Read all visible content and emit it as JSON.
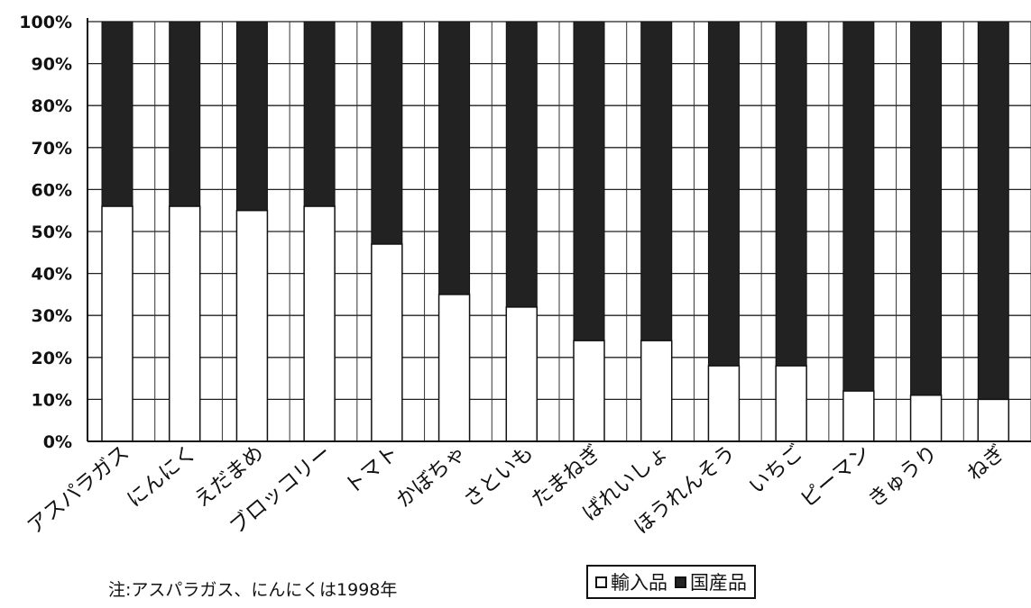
{
  "chart_data": {
    "type": "bar",
    "stacked": true,
    "percent_stacked": true,
    "categories": [
      "アスパラガス",
      "にんにく",
      "えだまめ",
      "ブロッコリー",
      "トマト",
      "かぼちゃ",
      "さといも",
      "たまねぎ",
      "ばれいしょ",
      "ほうれんそう",
      "いちご",
      "ピーマン",
      "きゅうり",
      "ねぎ"
    ],
    "series": [
      {
        "name": "輸入品",
        "values": [
          56,
          56,
          55,
          56,
          47,
          35,
          32,
          24,
          24,
          18,
          18,
          12,
          11,
          10
        ]
      },
      {
        "name": "国産品",
        "values": [
          44,
          44,
          45,
          44,
          53,
          65,
          68,
          76,
          76,
          82,
          82,
          88,
          89,
          90
        ]
      }
    ],
    "y_ticks": [
      "0%",
      "10%",
      "20%",
      "30%",
      "40%",
      "50%",
      "60%",
      "70%",
      "80%",
      "90%",
      "100%"
    ],
    "ylim": [
      0,
      100
    ],
    "grid": true,
    "legend_position": "bottom",
    "note": "注:アスパラガス、にんにくは1998年",
    "colors": {
      "imported": "#ffffff",
      "domestic": "#222222",
      "axis": "#111111"
    }
  }
}
